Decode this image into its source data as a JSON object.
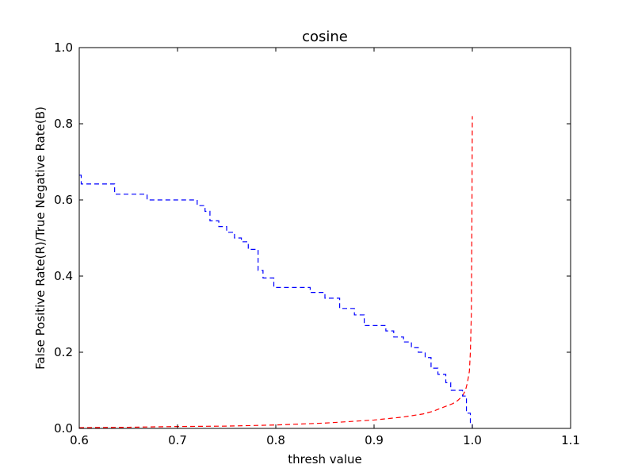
{
  "chart_data": {
    "type": "line",
    "title": "cosine",
    "xlabel": "thresh value",
    "ylabel": "False Positive Rate(R)/True Negative Rate(B)",
    "xlim": [
      0.6,
      1.1
    ],
    "ylim": [
      0.0,
      1.0
    ],
    "xticks": [
      "0.6",
      "0.7",
      "0.8",
      "0.9",
      "1.0",
      "1.1"
    ],
    "yticks": [
      "0.0",
      "0.2",
      "0.4",
      "0.6",
      "0.8",
      "1.0"
    ],
    "grid": false,
    "series": [
      {
        "color": "#ff0000",
        "linestyle": "dashed",
        "step": false,
        "points": [
          [
            0.6,
            0.002
          ],
          [
            0.65,
            0.003
          ],
          [
            0.7,
            0.005
          ],
          [
            0.75,
            0.006
          ],
          [
            0.8,
            0.009
          ],
          [
            0.85,
            0.014
          ],
          [
            0.9,
            0.022
          ],
          [
            0.93,
            0.03
          ],
          [
            0.95,
            0.038
          ],
          [
            0.96,
            0.045
          ],
          [
            0.97,
            0.055
          ],
          [
            0.98,
            0.065
          ],
          [
            0.985,
            0.073
          ],
          [
            0.99,
            0.085
          ],
          [
            0.993,
            0.1
          ],
          [
            0.995,
            0.12
          ],
          [
            0.997,
            0.15
          ],
          [
            0.998,
            0.2
          ],
          [
            0.999,
            0.3
          ],
          [
            0.9995,
            0.5
          ],
          [
            1.0,
            0.82
          ]
        ]
      },
      {
        "color": "#0000ff",
        "linestyle": "dashed",
        "step": true,
        "points": [
          [
            0.6,
            0.665
          ],
          [
            0.602,
            0.642
          ],
          [
            0.63,
            0.642
          ],
          [
            0.636,
            0.615
          ],
          [
            0.665,
            0.615
          ],
          [
            0.669,
            0.6
          ],
          [
            0.71,
            0.6
          ],
          [
            0.72,
            0.585
          ],
          [
            0.728,
            0.57
          ],
          [
            0.733,
            0.545
          ],
          [
            0.742,
            0.53
          ],
          [
            0.75,
            0.515
          ],
          [
            0.758,
            0.5
          ],
          [
            0.765,
            0.49
          ],
          [
            0.772,
            0.47
          ],
          [
            0.782,
            0.415
          ],
          [
            0.787,
            0.395
          ],
          [
            0.798,
            0.37
          ],
          [
            0.835,
            0.357
          ],
          [
            0.85,
            0.342
          ],
          [
            0.865,
            0.315
          ],
          [
            0.88,
            0.298
          ],
          [
            0.89,
            0.27
          ],
          [
            0.912,
            0.256
          ],
          [
            0.92,
            0.24
          ],
          [
            0.93,
            0.227
          ],
          [
            0.938,
            0.212
          ],
          [
            0.945,
            0.2
          ],
          [
            0.952,
            0.186
          ],
          [
            0.958,
            0.158
          ],
          [
            0.965,
            0.142
          ],
          [
            0.973,
            0.12
          ],
          [
            0.978,
            0.1
          ],
          [
            0.99,
            0.085
          ],
          [
            0.994,
            0.04
          ],
          [
            0.998,
            0.01
          ],
          [
            1.0,
            0.0
          ]
        ]
      }
    ]
  }
}
